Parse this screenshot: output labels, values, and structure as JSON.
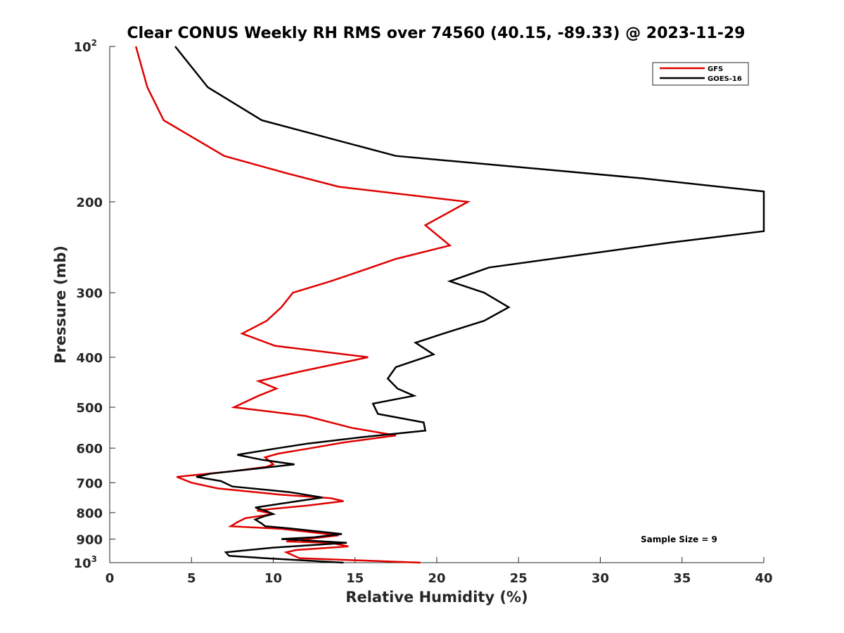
{
  "chart_data": {
    "type": "line",
    "title": "Clear CONUS Weekly RH RMS over 74560 (40.15, -89.33) @ 2023-11-29",
    "xlabel": "Relative Humidity (%)",
    "ylabel": "Pressure (mb)",
    "xlim": [
      0,
      40
    ],
    "ylim": [
      100,
      1000
    ],
    "yscale": "log",
    "y_reversed": true,
    "grid": false,
    "legend_position": "top-right",
    "x_ticks": [
      "0",
      "5",
      "10",
      "15",
      "20",
      "25",
      "30",
      "35",
      "40"
    ],
    "y_ticks": [
      {
        "value": 100,
        "label": "10",
        "exp": "2"
      },
      {
        "value": 200,
        "label": "200"
      },
      {
        "value": 300,
        "label": "300"
      },
      {
        "value": 400,
        "label": "400"
      },
      {
        "value": 500,
        "label": "500"
      },
      {
        "value": 600,
        "label": "600"
      },
      {
        "value": 700,
        "label": "700"
      },
      {
        "value": 800,
        "label": "800"
      },
      {
        "value": 900,
        "label": "900"
      },
      {
        "value": 1000,
        "label": "10",
        "exp": "3"
      }
    ],
    "series": [
      {
        "name": "GFS",
        "color": "#e00000",
        "points": [
          [
            1.6,
            100
          ],
          [
            2.3,
            120
          ],
          [
            3.3,
            139
          ],
          [
            7.0,
            163
          ],
          [
            10.8,
            176
          ],
          [
            14.0,
            187
          ],
          [
            21.9,
            200
          ],
          [
            19.3,
            222
          ],
          [
            20.8,
            243
          ],
          [
            17.5,
            258
          ],
          [
            15.7,
            270
          ],
          [
            13.5,
            285
          ],
          [
            11.2,
            300
          ],
          [
            10.5,
            320
          ],
          [
            9.6,
            340
          ],
          [
            8.1,
            360
          ],
          [
            10.1,
            380
          ],
          [
            15.8,
            400
          ],
          [
            11.7,
            426
          ],
          [
            9.1,
            445
          ],
          [
            10.2,
            460
          ],
          [
            9.1,
            475
          ],
          [
            7.6,
            500
          ],
          [
            12.0,
            520
          ],
          [
            14.8,
            548
          ],
          [
            17.5,
            567
          ],
          [
            14.3,
            585
          ],
          [
            12.3,
            600
          ],
          [
            10.3,
            615
          ],
          [
            9.5,
            625
          ],
          [
            10.0,
            645
          ],
          [
            9.6,
            652
          ],
          [
            7.5,
            665
          ],
          [
            4.1,
            682
          ],
          [
            5.0,
            700
          ],
          [
            6.6,
            718
          ],
          [
            10.4,
            738
          ],
          [
            13.5,
            750
          ],
          [
            14.3,
            760
          ],
          [
            12.1,
            775
          ],
          [
            9.0,
            792
          ],
          [
            10.0,
            805
          ],
          [
            8.3,
            820
          ],
          [
            7.8,
            835
          ],
          [
            7.4,
            850
          ],
          [
            10.5,
            860
          ],
          [
            14.0,
            885
          ],
          [
            10.8,
            910
          ],
          [
            13.5,
            915
          ],
          [
            14.6,
            930
          ],
          [
            11.4,
            945
          ],
          [
            10.8,
            955
          ],
          [
            11.6,
            980
          ],
          [
            19.0,
            1000
          ]
        ]
      },
      {
        "name": "GOES-16",
        "color": "#000000",
        "points": [
          [
            4.0,
            100
          ],
          [
            6.0,
            120
          ],
          [
            9.3,
            139
          ],
          [
            17.5,
            163
          ],
          [
            32.5,
            180
          ],
          [
            40.0,
            191
          ],
          [
            40.0,
            228
          ],
          [
            34.2,
            240
          ],
          [
            23.2,
            268
          ],
          [
            20.8,
            285
          ],
          [
            22.9,
            300
          ],
          [
            24.4,
            320
          ],
          [
            22.9,
            340
          ],
          [
            20.4,
            360
          ],
          [
            18.7,
            375
          ],
          [
            19.8,
            395
          ],
          [
            17.5,
            418
          ],
          [
            17.0,
            440
          ],
          [
            17.6,
            460
          ],
          [
            18.6,
            475
          ],
          [
            16.1,
            492
          ],
          [
            16.4,
            515
          ],
          [
            19.2,
            535
          ],
          [
            19.3,
            555
          ],
          [
            15.3,
            572
          ],
          [
            12.1,
            588
          ],
          [
            10.3,
            600
          ],
          [
            7.8,
            618
          ],
          [
            9.3,
            632
          ],
          [
            11.3,
            645
          ],
          [
            8.5,
            660
          ],
          [
            6.2,
            672
          ],
          [
            5.3,
            682
          ],
          [
            6.8,
            695
          ],
          [
            7.5,
            712
          ],
          [
            11.0,
            730
          ],
          [
            13.0,
            748
          ],
          [
            11.5,
            760
          ],
          [
            8.9,
            782
          ],
          [
            9.6,
            795
          ],
          [
            10.0,
            805
          ],
          [
            9.5,
            812
          ],
          [
            8.9,
            825
          ],
          [
            9.3,
            840
          ],
          [
            9.5,
            850
          ],
          [
            11.0,
            858
          ],
          [
            14.2,
            880
          ],
          [
            12.5,
            893
          ],
          [
            10.5,
            900
          ],
          [
            14.5,
            915
          ],
          [
            10.0,
            935
          ],
          [
            7.1,
            955
          ],
          [
            7.3,
            970
          ],
          [
            9.5,
            980
          ],
          [
            14.3,
            1000
          ]
        ]
      }
    ],
    "annotations": [
      {
        "text": "Sample Size = 9"
      }
    ]
  }
}
